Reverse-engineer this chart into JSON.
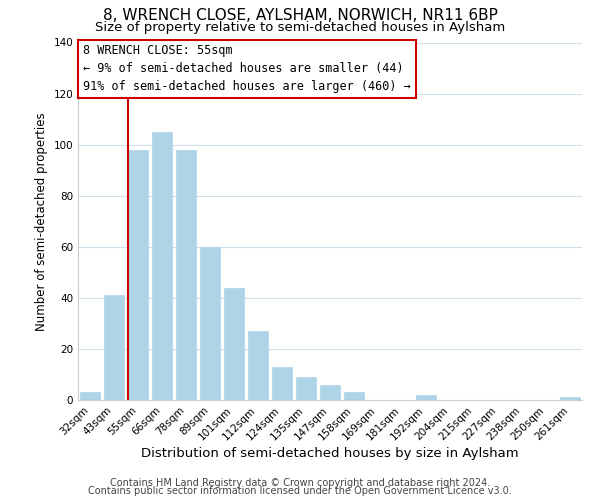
{
  "title": "8, WRENCH CLOSE, AYLSHAM, NORWICH, NR11 6BP",
  "subtitle": "Size of property relative to semi-detached houses in Aylsham",
  "xlabel": "Distribution of semi-detached houses by size in Aylsham",
  "ylabel": "Number of semi-detached properties",
  "categories": [
    "32sqm",
    "43sqm",
    "55sqm",
    "66sqm",
    "78sqm",
    "89sqm",
    "101sqm",
    "112sqm",
    "124sqm",
    "135sqm",
    "147sqm",
    "158sqm",
    "169sqm",
    "181sqm",
    "192sqm",
    "204sqm",
    "215sqm",
    "227sqm",
    "238sqm",
    "250sqm",
    "261sqm"
  ],
  "values": [
    3,
    41,
    98,
    105,
    98,
    60,
    44,
    27,
    13,
    9,
    6,
    3,
    0,
    0,
    2,
    0,
    0,
    0,
    0,
    0,
    1
  ],
  "bar_color": "#aed4e8",
  "bar_edge_color": "#aed4e8",
  "highlight_bar_index": 2,
  "highlight_line_color": "#cc0000",
  "ylim": [
    0,
    140
  ],
  "yticks": [
    0,
    20,
    40,
    60,
    80,
    100,
    120,
    140
  ],
  "annotation_title": "8 WRENCH CLOSE: 55sqm",
  "annotation_line1": "← 9% of semi-detached houses are smaller (44)",
  "annotation_line2": "91% of semi-detached houses are larger (460) →",
  "annotation_box_color": "#ffffff",
  "annotation_box_edge_color": "#cc0000",
  "footnote1": "Contains HM Land Registry data © Crown copyright and database right 2024.",
  "footnote2": "Contains public sector information licensed under the Open Government Licence v3.0.",
  "background_color": "#ffffff",
  "grid_color": "#cfe0ec",
  "title_fontsize": 11,
  "subtitle_fontsize": 9.5,
  "xlabel_fontsize": 9.5,
  "ylabel_fontsize": 8.5,
  "tick_fontsize": 7.5,
  "annotation_fontsize": 8.5,
  "footnote_fontsize": 7
}
